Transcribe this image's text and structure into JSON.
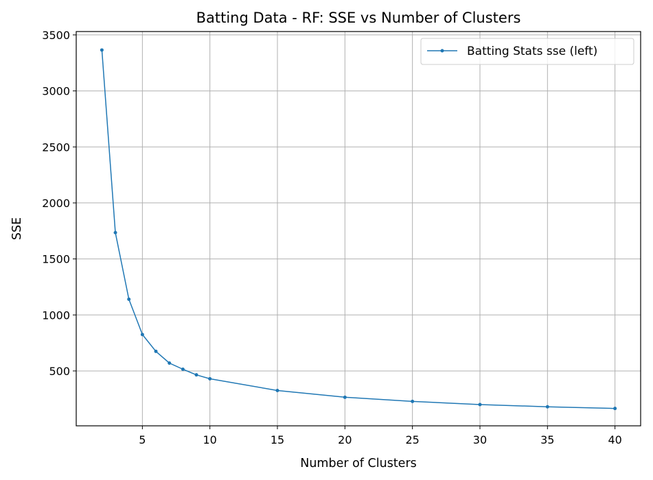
{
  "chart_data": {
    "type": "line",
    "title": "Batting Data - RF: SSE vs Number of Clusters",
    "xlabel": "Number of Clusters",
    "ylabel": "SSE",
    "xlim": [
      0.1,
      41.9
    ],
    "ylim": [
      10,
      3530
    ],
    "xticks": [
      5,
      10,
      15,
      20,
      25,
      30,
      35,
      40
    ],
    "yticks": [
      500,
      1000,
      1500,
      2000,
      2500,
      3000,
      3500
    ],
    "grid": true,
    "legend": "top-right",
    "series": [
      {
        "name": "Batting Stats sse (left)",
        "color": "#1f77b4",
        "marker": "point",
        "x": [
          2,
          3,
          4,
          5,
          6,
          7,
          8,
          9,
          10,
          15,
          20,
          25,
          30,
          35,
          40
        ],
        "y": [
          3365,
          1735,
          1140,
          825,
          675,
          570,
          515,
          465,
          430,
          325,
          265,
          228,
          200,
          180,
          165
        ]
      }
    ]
  }
}
